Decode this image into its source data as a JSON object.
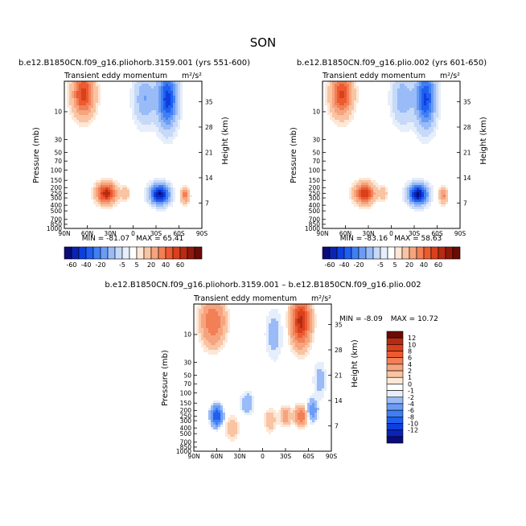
{
  "figure": {
    "title": "SON"
  },
  "colors": {
    "negative": [
      "#0b0b7a",
      "#0a23b5",
      "#0d3ede",
      "#1f5ff0",
      "#3f7ff3",
      "#6b9cf5",
      "#99bbf7",
      "#c6d9f8",
      "#e6eefb"
    ],
    "neutral": "#ffffff",
    "positive": [
      "#fde7d6",
      "#f9c4a3",
      "#f6a47e",
      "#f27f56",
      "#ec5a30",
      "#d9401c",
      "#b62b12",
      "#8f190b",
      "#6a0b06"
    ]
  },
  "chart_data": [
    {
      "type": "heatmap",
      "title": "b.e12.B1850CN.f09_g16.pliohorb.3159.001 (yrs 551-600)",
      "subtitle": "Transient eddy momentum",
      "units": "m²/s²",
      "ylabel": "Pressure (mb)",
      "y2label": "Height (km)",
      "xticks": [
        "90N",
        "60N",
        "30N",
        "0",
        "30S",
        "60S",
        "90S"
      ],
      "yticks": [
        "10",
        "30",
        "50",
        "70",
        "100",
        "150",
        "200",
        "250",
        "300",
        "400",
        "500",
        "700",
        "850",
        "1000"
      ],
      "y2ticks": [
        "35",
        "28",
        "21",
        "14",
        "7"
      ],
      "stats": {
        "min_label": "MIN = ",
        "min": "-81.07",
        "max_label": "MAX = ",
        "max": "65.41"
      },
      "colorbar_labels": [
        "-60",
        "-40",
        "-20",
        "-5",
        "5",
        "20",
        "40",
        "60"
      ],
      "features": [
        {
          "lat": 65,
          "p": 5,
          "value": 55,
          "wlat": 10,
          "wp": 0.6
        },
        {
          "lat": 35,
          "p": 250,
          "value": 65,
          "wlat": 9,
          "wp": 0.28
        },
        {
          "lat": 10,
          "p": 250,
          "value": 18,
          "wlat": 4,
          "wp": 0.2
        },
        {
          "lat": -15,
          "p": 6,
          "value": -30,
          "wlat": 10,
          "wp": 0.7
        },
        {
          "lat": -45,
          "p": 6,
          "value": -65,
          "wlat": 9,
          "wp": 0.8
        },
        {
          "lat": -35,
          "p": 260,
          "value": -81,
          "wlat": 9,
          "wp": 0.28
        },
        {
          "lat": -68,
          "p": 270,
          "value": 35,
          "wlat": 4,
          "wp": 0.22
        }
      ]
    },
    {
      "type": "heatmap",
      "title": "b.e12.B1850CN.f09_g16.plio.002 (yrs 601-650)",
      "subtitle": "Transient eddy momentum",
      "units": "m²/s²",
      "ylabel": "Pressure (mb)",
      "y2label": "Height (km)",
      "xticks": [
        "90N",
        "60N",
        "30N",
        "0",
        "30S",
        "60S",
        "90S"
      ],
      "yticks": [
        "10",
        "30",
        "50",
        "70",
        "100",
        "150",
        "200",
        "250",
        "300",
        "400",
        "500",
        "700",
        "850",
        "1000"
      ],
      "y2ticks": [
        "35",
        "28",
        "21",
        "14",
        "7"
      ],
      "stats": {
        "min_label": "MIN = ",
        "min": "-83.16",
        "max_label": "MAX = ",
        "max": "58.63"
      },
      "colorbar_labels": [
        "-60",
        "-40",
        "-20",
        "-5",
        "5",
        "20",
        "40",
        "60"
      ],
      "features": [
        {
          "lat": 65,
          "p": 5,
          "value": 52,
          "wlat": 10,
          "wp": 0.6
        },
        {
          "lat": 35,
          "p": 250,
          "value": 58,
          "wlat": 9,
          "wp": 0.28
        },
        {
          "lat": 10,
          "p": 250,
          "value": 16,
          "wlat": 4,
          "wp": 0.2
        },
        {
          "lat": -15,
          "p": 6,
          "value": -28,
          "wlat": 10,
          "wp": 0.7
        },
        {
          "lat": -45,
          "p": 6,
          "value": -62,
          "wlat": 9,
          "wp": 0.8
        },
        {
          "lat": -35,
          "p": 260,
          "value": -83,
          "wlat": 9,
          "wp": 0.28
        },
        {
          "lat": -68,
          "p": 270,
          "value": 33,
          "wlat": 4,
          "wp": 0.22
        }
      ]
    },
    {
      "type": "heatmap",
      "title": "b.e12.B1850CN.f09_g16.pliohorb.3159.001 – b.e12.B1850CN.f09_g16.plio.002",
      "subtitle": "Transient eddy momentum",
      "units": "m²/s²",
      "ylabel": "Pressure (mb)",
      "y2label": "Height (km)",
      "xticks": [
        "90N",
        "60N",
        "30N",
        "0",
        "30S",
        "60S",
        "90S"
      ],
      "yticks": [
        "10",
        "30",
        "50",
        "70",
        "100",
        "150",
        "200",
        "250",
        "300",
        "400",
        "500",
        "700",
        "850",
        "1000"
      ],
      "y2ticks": [
        "35",
        "28",
        "21",
        "14",
        "7"
      ],
      "stats": {
        "min_label": "MIN = ",
        "min": "-8.09",
        "max_label": "MAX = ",
        "max": "10.72"
      },
      "colorbar_labels": [
        "12",
        "10",
        "8",
        "6",
        "4",
        "2",
        "1",
        "0",
        "-1",
        "-2",
        "-4",
        "-6",
        "-8",
        "-10",
        "-12"
      ],
      "features": [
        {
          "lat": 65,
          "p": 6,
          "value": 6,
          "wlat": 10,
          "wp": 0.6
        },
        {
          "lat": -50,
          "p": 6,
          "value": 10.7,
          "wlat": 8,
          "wp": 0.6
        },
        {
          "lat": -15,
          "p": 10,
          "value": -1.5,
          "wlat": 8,
          "wp": 0.7
        },
        {
          "lat": 60,
          "p": 250,
          "value": -8,
          "wlat": 5,
          "wp": 0.25
        },
        {
          "lat": 40,
          "p": 400,
          "value": 2,
          "wlat": 6,
          "wp": 0.3
        },
        {
          "lat": 20,
          "p": 150,
          "value": -2,
          "wlat": 6,
          "wp": 0.3
        },
        {
          "lat": -10,
          "p": 300,
          "value": 2,
          "wlat": 5,
          "wp": 0.3
        },
        {
          "lat": -30,
          "p": 250,
          "value": 3,
          "wlat": 5,
          "wp": 0.25
        },
        {
          "lat": -50,
          "p": 250,
          "value": 6,
          "wlat": 5,
          "wp": 0.25
        },
        {
          "lat": -65,
          "p": 200,
          "value": -3,
          "wlat": 5,
          "wp": 0.3
        },
        {
          "lat": -75,
          "p": 60,
          "value": -1.5,
          "wlat": 6,
          "wp": 0.5
        }
      ]
    }
  ]
}
